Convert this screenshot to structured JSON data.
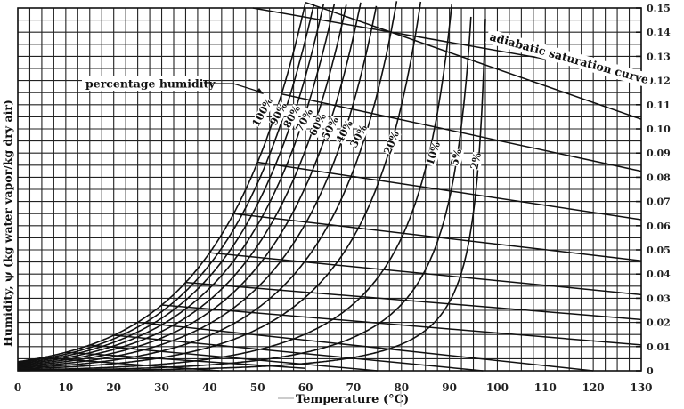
{
  "chart_data": {
    "type": "line",
    "title": "",
    "xlabel": "Temperature (°C)",
    "ylabel": "Humidity, ψ (kg water vapor/kg dry air)",
    "xlim": [
      0,
      130
    ],
    "ylim": [
      0,
      0.15
    ],
    "x_ticks": [
      0,
      10,
      20,
      30,
      40,
      50,
      60,
      70,
      80,
      90,
      100,
      110,
      120,
      130
    ],
    "y_ticks": [
      0,
      0.01,
      0.02,
      0.03,
      0.04,
      0.05,
      0.06,
      0.07,
      0.08,
      0.09,
      0.1,
      0.11,
      0.12,
      0.13,
      0.14,
      0.15
    ],
    "y_tick_labels": [
      "0",
      "0.01",
      "0.02",
      "0.03",
      "0.04",
      "0.05",
      "0.06",
      "0.07",
      "0.08",
      "0.09",
      "0.10",
      "0.11",
      "0.12",
      "0.13",
      "0.14",
      "0.15"
    ],
    "grid": {
      "on": true,
      "x_step": 2.5,
      "y_step": 0.005
    },
    "y_axis_position": "right",
    "series": [
      {
        "name": "100%",
        "fraction": 1.0,
        "x": [
          0,
          10,
          20,
          30,
          40,
          50,
          55,
          60
        ],
        "y": [
          0.0038,
          0.0077,
          0.0148,
          0.0273,
          0.0491,
          0.0868,
          0.115,
          0.152
        ]
      },
      {
        "name": "90%",
        "fraction": 0.9
      },
      {
        "name": "80%",
        "fraction": 0.8
      },
      {
        "name": "70%",
        "fraction": 0.7
      },
      {
        "name": "60%",
        "fraction": 0.6
      },
      {
        "name": "50%",
        "fraction": 0.5
      },
      {
        "name": "40%",
        "fraction": 0.4
      },
      {
        "name": "30%",
        "fraction": 0.3
      },
      {
        "name": "20%",
        "fraction": 0.2
      },
      {
        "name": "10%",
        "fraction": 0.1
      },
      {
        "name": "5%",
        "fraction": 0.05
      },
      {
        "name": "2%",
        "fraction": 0.02
      }
    ],
    "adiabatic_lines": [
      {
        "t_sat": 5,
        "end": [
          42,
          0
        ]
      },
      {
        "t_sat": 10,
        "end": [
          60,
          0.001
        ]
      },
      {
        "t_sat": 15,
        "end": [
          75,
          0
        ]
      },
      {
        "t_sat": 20,
        "end": [
          97,
          0
        ]
      },
      {
        "t_sat": 25,
        "end": [
          120,
          0
        ]
      },
      {
        "t_sat": 30,
        "end": [
          130,
          0.0107
        ]
      },
      {
        "t_sat": 35,
        "end": [
          130,
          0.0212
        ]
      },
      {
        "t_sat": 40,
        "end": [
          130,
          0.0315
        ]
      },
      {
        "t_sat": 45,
        "end": [
          130,
          0.0455
        ]
      },
      {
        "t_sat": 50,
        "end": [
          130,
          0.0625
        ]
      },
      {
        "t_sat": 55,
        "end": [
          130,
          0.0825
        ]
      },
      {
        "t_sat": 60,
        "end": [
          130,
          0.104
        ]
      }
    ],
    "annotations": [
      {
        "text": "percentage humidity",
        "points_to": "100%"
      },
      {
        "text": "adiabatic saturation curve"
      }
    ]
  },
  "labels": {
    "xlabel": "Temperature (°C)",
    "ylabel": "Humidity, ψ (kg water vapor/kg dry air)",
    "percentage_humidity": "percentage humidity",
    "adiabatic": "adiabatic saturation curve"
  }
}
